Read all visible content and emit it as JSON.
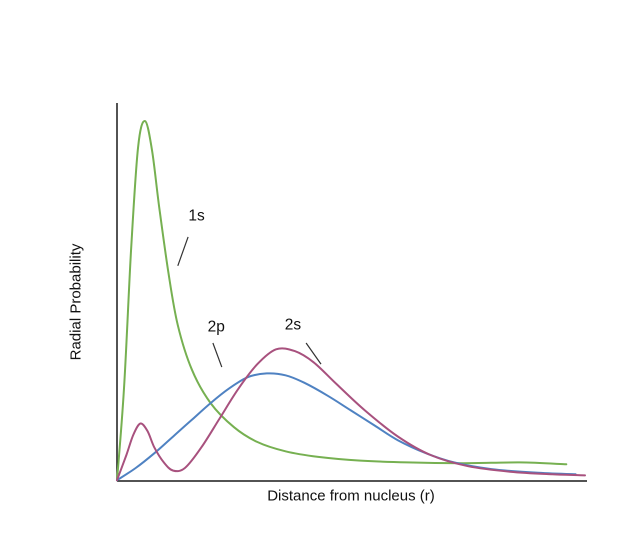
{
  "chart_data": {
    "type": "line",
    "title": "",
    "xlabel": "Distance from nucleus (r)",
    "ylabel": "Radial Probability",
    "xlim": [
      0,
      10
    ],
    "ylim": [
      0,
      1
    ],
    "grid": false,
    "legend": "none",
    "axis_color": "#1a1a1a",
    "text_color": "#111111",
    "background": "#ffffff",
    "series": [
      {
        "name": "1s",
        "color": "#76b051",
        "points": [
          [
            0,
            0
          ],
          [
            0.15,
            0.25
          ],
          [
            0.3,
            0.62
          ],
          [
            0.45,
            0.9
          ],
          [
            0.6,
            0.97
          ],
          [
            0.75,
            0.89
          ],
          [
            0.9,
            0.74
          ],
          [
            1.1,
            0.56
          ],
          [
            1.3,
            0.42
          ],
          [
            1.6,
            0.3
          ],
          [
            2,
            0.21
          ],
          [
            2.5,
            0.145
          ],
          [
            3,
            0.105
          ],
          [
            3.6,
            0.08
          ],
          [
            4.3,
            0.065
          ],
          [
            5.2,
            0.055
          ],
          [
            6.2,
            0.05
          ],
          [
            7.4,
            0.048
          ],
          [
            8.6,
            0.05
          ],
          [
            9.6,
            0.045
          ]
        ]
      },
      {
        "name": "2p",
        "color": "#4f82c2",
        "points": [
          [
            0,
            0
          ],
          [
            0.4,
            0.035
          ],
          [
            0.8,
            0.075
          ],
          [
            1.2,
            0.12
          ],
          [
            1.6,
            0.165
          ],
          [
            2,
            0.21
          ],
          [
            2.4,
            0.25
          ],
          [
            2.8,
            0.28
          ],
          [
            3.2,
            0.29
          ],
          [
            3.6,
            0.285
          ],
          [
            4,
            0.265
          ],
          [
            4.5,
            0.23
          ],
          [
            5,
            0.19
          ],
          [
            5.5,
            0.15
          ],
          [
            6,
            0.11
          ],
          [
            6.6,
            0.075
          ],
          [
            7.2,
            0.05
          ],
          [
            8,
            0.032
          ],
          [
            9,
            0.022
          ],
          [
            9.8,
            0.018
          ]
        ]
      },
      {
        "name": "2s",
        "color": "#a8517e",
        "points": [
          [
            0,
            0
          ],
          [
            0.2,
            0.07
          ],
          [
            0.35,
            0.125
          ],
          [
            0.5,
            0.155
          ],
          [
            0.65,
            0.135
          ],
          [
            0.8,
            0.09
          ],
          [
            1,
            0.05
          ],
          [
            1.2,
            0.028
          ],
          [
            1.45,
            0.035
          ],
          [
            1.8,
            0.09
          ],
          [
            2.2,
            0.17
          ],
          [
            2.6,
            0.25
          ],
          [
            3,
            0.315
          ],
          [
            3.4,
            0.355
          ],
          [
            3.8,
            0.35
          ],
          [
            4.2,
            0.32
          ],
          [
            4.7,
            0.26
          ],
          [
            5.3,
            0.19
          ],
          [
            6,
            0.12
          ],
          [
            6.7,
            0.07
          ],
          [
            7.5,
            0.04
          ],
          [
            8.4,
            0.025
          ],
          [
            9.3,
            0.018
          ],
          [
            10,
            0.015
          ]
        ]
      }
    ],
    "annotations": [
      {
        "label": "1s",
        "text_xy": [
          1.7,
          0.715
        ],
        "line": [
          [
            1.52,
            0.658
          ],
          [
            1.3,
            0.58
          ]
        ]
      },
      {
        "label": "2p",
        "text_xy": [
          2.12,
          0.415
        ],
        "line": [
          [
            2.05,
            0.372
          ],
          [
            2.24,
            0.307
          ]
        ]
      },
      {
        "label": "2s",
        "text_xy": [
          3.76,
          0.42
        ],
        "line": [
          [
            4.04,
            0.372
          ],
          [
            4.36,
            0.315
          ]
        ]
      }
    ]
  }
}
